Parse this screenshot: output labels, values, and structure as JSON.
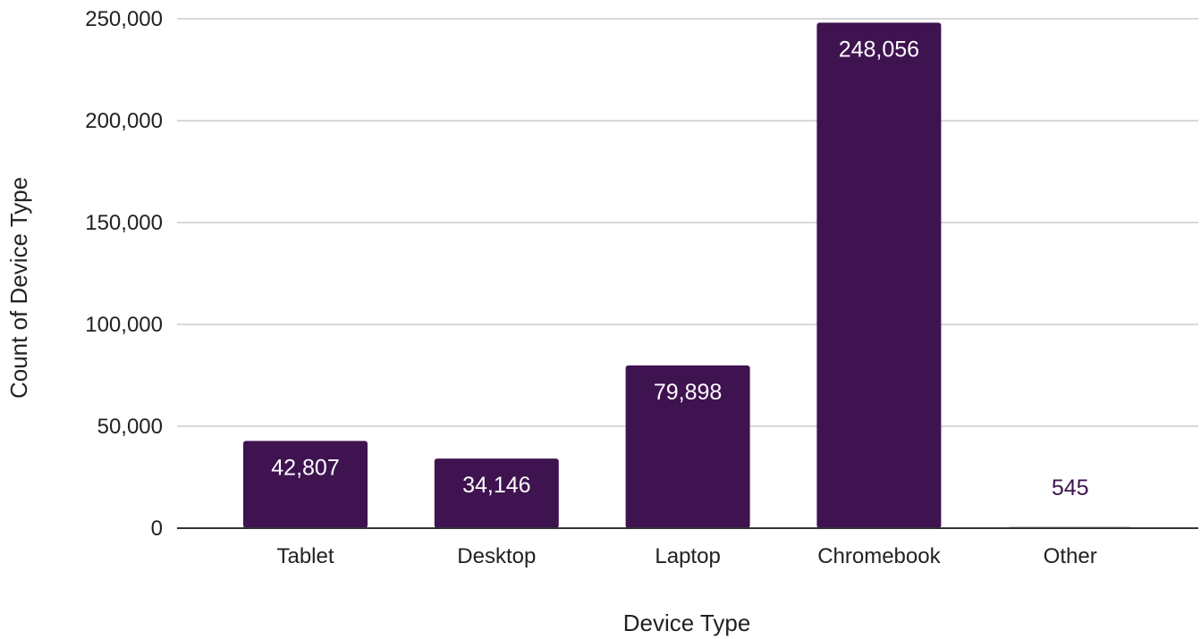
{
  "colors": {
    "bar": "#3f1350",
    "label_inside": "#ffffff",
    "label_outside": "#3f1350",
    "grid": "#cccccc",
    "axis": "#333333"
  },
  "chart_data": {
    "type": "bar",
    "title": "",
    "xlabel": "Device Type",
    "ylabel": "Count of Device Type",
    "ylim": [
      0,
      250000
    ],
    "yticks": [
      0,
      50000,
      100000,
      150000,
      200000,
      250000
    ],
    "ytick_labels": [
      "0",
      "50,000",
      "100,000",
      "150,000",
      "200,000",
      "250,000"
    ],
    "grid": true,
    "categories": [
      "Tablet",
      "Desktop",
      "Laptop",
      "Chromebook",
      "Other"
    ],
    "values": [
      42807,
      34146,
      79898,
      248056,
      545
    ],
    "data_labels": [
      "42,807",
      "34,146",
      "79,898",
      "248,056",
      "545"
    ]
  }
}
